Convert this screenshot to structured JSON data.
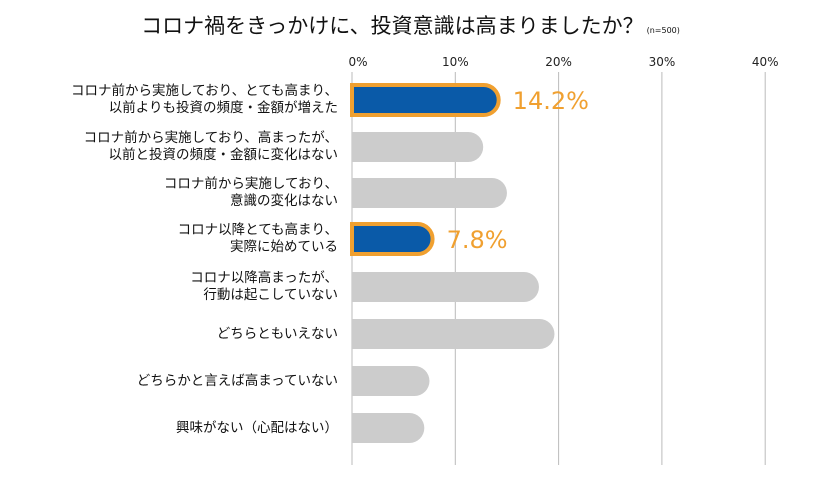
{
  "chart_data": {
    "type": "bar",
    "orientation": "horizontal",
    "title": "コロナ禍をきっかけに、投資意識は高まりましたか？",
    "subtitle": "(n=500)",
    "xlabel": "",
    "ylabel": "",
    "xlim": [
      0,
      40
    ],
    "ticks": [
      "0%",
      "10%",
      "20%",
      "30%",
      "40%"
    ],
    "tick_values": [
      0,
      10,
      20,
      30,
      40
    ],
    "grid": true,
    "categories": [
      [
        "コロナ前から実施しており、とても高まり、",
        "以前よりも投資の頻度・金額が増えた"
      ],
      [
        "コロナ前から実施しており、高まったが、",
        "以前と投資の頻度・金額に変化はない"
      ],
      [
        "コロナ前から実施しており、",
        "意識の変化はない"
      ],
      [
        "コロナ以降とても高まり、",
        "実際に始めている"
      ],
      [
        "コロナ以降高まったが、",
        "行動は起こしていない"
      ],
      [
        "どちらともいえない"
      ],
      [
        "どちらかと言えば高まっていない"
      ],
      [
        "興味がない（心配はない）"
      ]
    ],
    "values": [
      14.2,
      12.7,
      15.0,
      7.8,
      18.1,
      19.6,
      7.5,
      7.0
    ],
    "highlighted": [
      true,
      false,
      false,
      true,
      false,
      false,
      false,
      false
    ],
    "data_labels": [
      "14.2%",
      "",
      "",
      "7.8%",
      "",
      "",
      "",
      ""
    ],
    "colors": {
      "highlight": "#0a5aa8",
      "highlight_border": "#f0a030",
      "default": "#cccccc",
      "label": "#f0a030",
      "grid": "#bbbbbb"
    }
  }
}
